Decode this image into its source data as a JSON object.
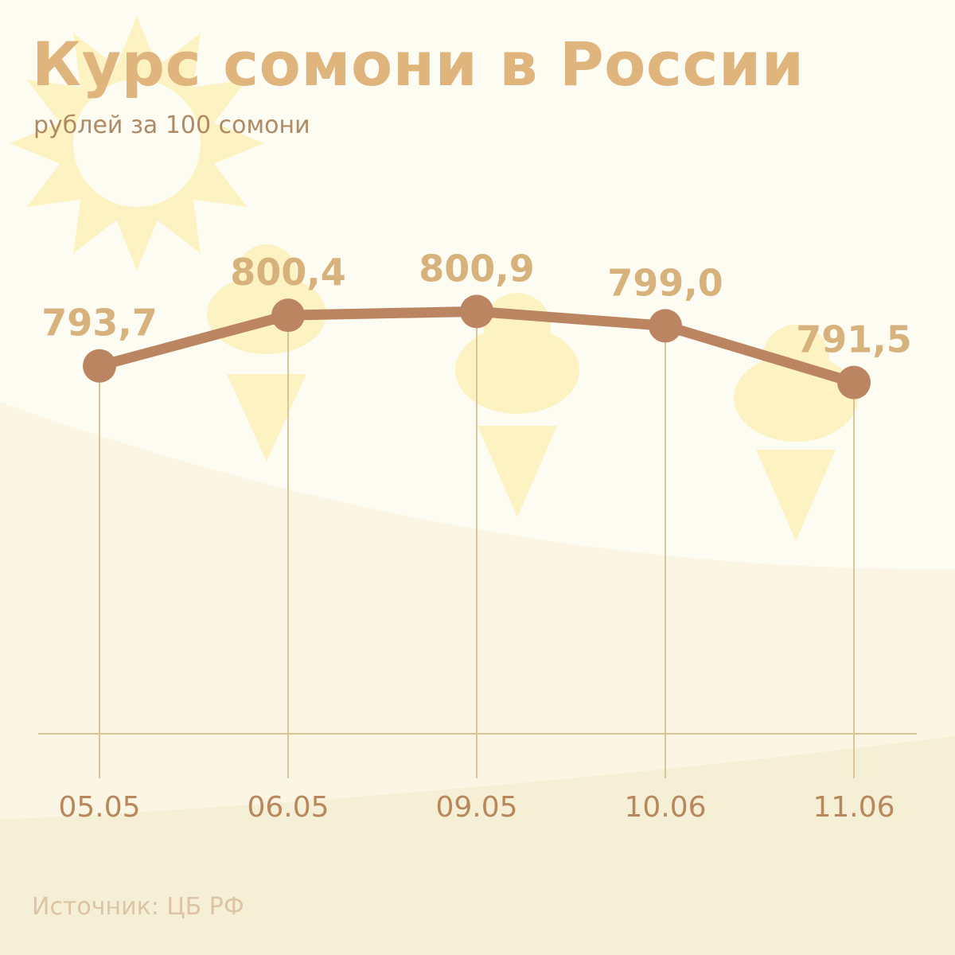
{
  "title": "Курс сомони в России",
  "subtitle": "рублей за 100 сомони",
  "source": "Источник: ЦБ РФ",
  "colors": {
    "background": "#fdfcf3",
    "title": "#dfb57d",
    "line": "#ba8560",
    "value_label": "#d8b27c",
    "guide_line": "#dac59a",
    "decor": "#fdf3c2"
  },
  "chart_data": {
    "type": "line",
    "categories": [
      "05.05",
      "06.05",
      "09.05",
      "10.06",
      "11.06"
    ],
    "values": [
      793.7,
      800.4,
      800.9,
      799.0,
      791.5
    ],
    "value_labels": [
      "793,7",
      "800,4",
      "800,9",
      "799,0",
      "791,5"
    ],
    "title": "Курс сомони в России",
    "subtitle": "рублей за 100 сомони",
    "ylim": [
      745,
      810
    ],
    "grid": false,
    "legend": "none"
  }
}
